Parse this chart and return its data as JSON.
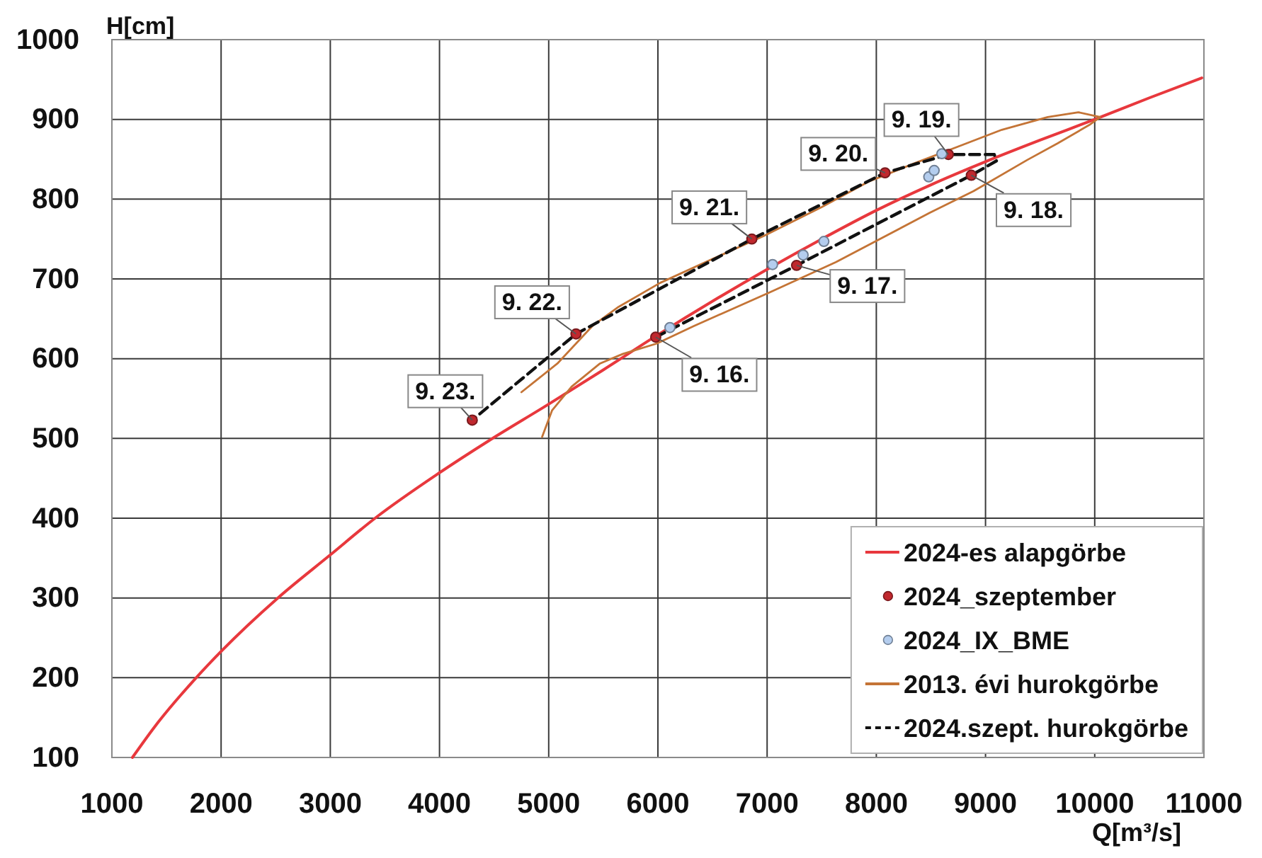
{
  "chart_data": {
    "type": "line",
    "xlabel": "Q[m³/s]",
    "ylabel": "H[cm]",
    "xlim": [
      1000,
      11000
    ],
    "ylim": [
      100,
      1000
    ],
    "xticks": [
      1000,
      2000,
      3000,
      4000,
      5000,
      6000,
      7000,
      8000,
      9000,
      10000,
      11000
    ],
    "yticks": [
      100,
      200,
      300,
      400,
      500,
      600,
      700,
      800,
      900,
      1000
    ],
    "grid": true,
    "legend": "bottom right",
    "series": [
      {
        "name": "2024-es alapgörbe",
        "color": "#e8383d",
        "x": [
          1188,
          1400,
          1772,
          2000,
          2520,
          3000,
          3410,
          4000,
          4450,
          5000,
          5500,
          6000,
          6500,
          7000,
          7500,
          8000,
          8500,
          9000,
          9500,
          10000,
          10500,
          10980
        ],
        "values": [
          100,
          140,
          200,
          233,
          300,
          354,
          400,
          457,
          497,
          543,
          586,
          630,
          672,
          712,
          750,
          786,
          818,
          847,
          874,
          900,
          927,
          952
        ]
      },
      {
        "name": "2024_szeptember",
        "type": "scatter",
        "marker": "circle",
        "color": "#c0282e",
        "x": [
          5980,
          7270,
          8870,
          8660,
          8080,
          6860,
          5250,
          4300
        ],
        "values": [
          627,
          717,
          830,
          856,
          833,
          750,
          631,
          523
        ]
      },
      {
        "name": "2024_IX_BME",
        "type": "scatter",
        "marker": "circle",
        "color": "#b4cdee",
        "x": [
          6110,
          7050,
          7330,
          7520,
          8480,
          8530,
          8600
        ],
        "values": [
          639,
          718,
          730,
          747,
          828,
          836,
          857
        ]
      },
      {
        "name": "2013. évi hurokgörbe",
        "color": "#c47436",
        "x": [
          4750,
          5080,
          5400,
          5640,
          6020,
          6500,
          6970,
          7500,
          7930,
          8350,
          8750,
          9150,
          9570,
          9850,
          10050,
          9950,
          9660,
          9380,
          8890,
          8490,
          7630,
          7020,
          6330,
          5990,
          5680,
          5470,
          5210,
          5030,
          4940
        ],
        "values": [
          558,
          594,
          641,
          665,
          695,
          725,
          754,
          790,
          822,
          845,
          866,
          887,
          903,
          909,
          903,
          893,
          870,
          849,
          810,
          783,
          721,
          683,
          641,
          619,
          606,
          594,
          565,
          535,
          502
        ]
      },
      {
        "name": "2024.szept. hurokgörbe",
        "line_style": "dashed",
        "color": "#111111",
        "x": [
          5980,
          7270,
          8870,
          9100,
          9080,
          8660,
          8080,
          6860,
          5250,
          4300
        ],
        "values": [
          627,
          717,
          830,
          848,
          856,
          856,
          833,
          750,
          631,
          523
        ]
      }
    ],
    "annotations": [
      {
        "text": "9. 16.",
        "x": 5980,
        "y": 627
      },
      {
        "text": "9. 17.",
        "x": 7270,
        "y": 717
      },
      {
        "text": "9. 18.",
        "x": 8870,
        "y": 830
      },
      {
        "text": "9. 19.",
        "x": 8660,
        "y": 856
      },
      {
        "text": "9. 20.",
        "x": 8080,
        "y": 833
      },
      {
        "text": "9. 21.",
        "x": 6860,
        "y": 750
      },
      {
        "text": "9. 22.",
        "x": 5250,
        "y": 631
      },
      {
        "text": "9. 23.",
        "x": 4300,
        "y": 523
      }
    ]
  }
}
